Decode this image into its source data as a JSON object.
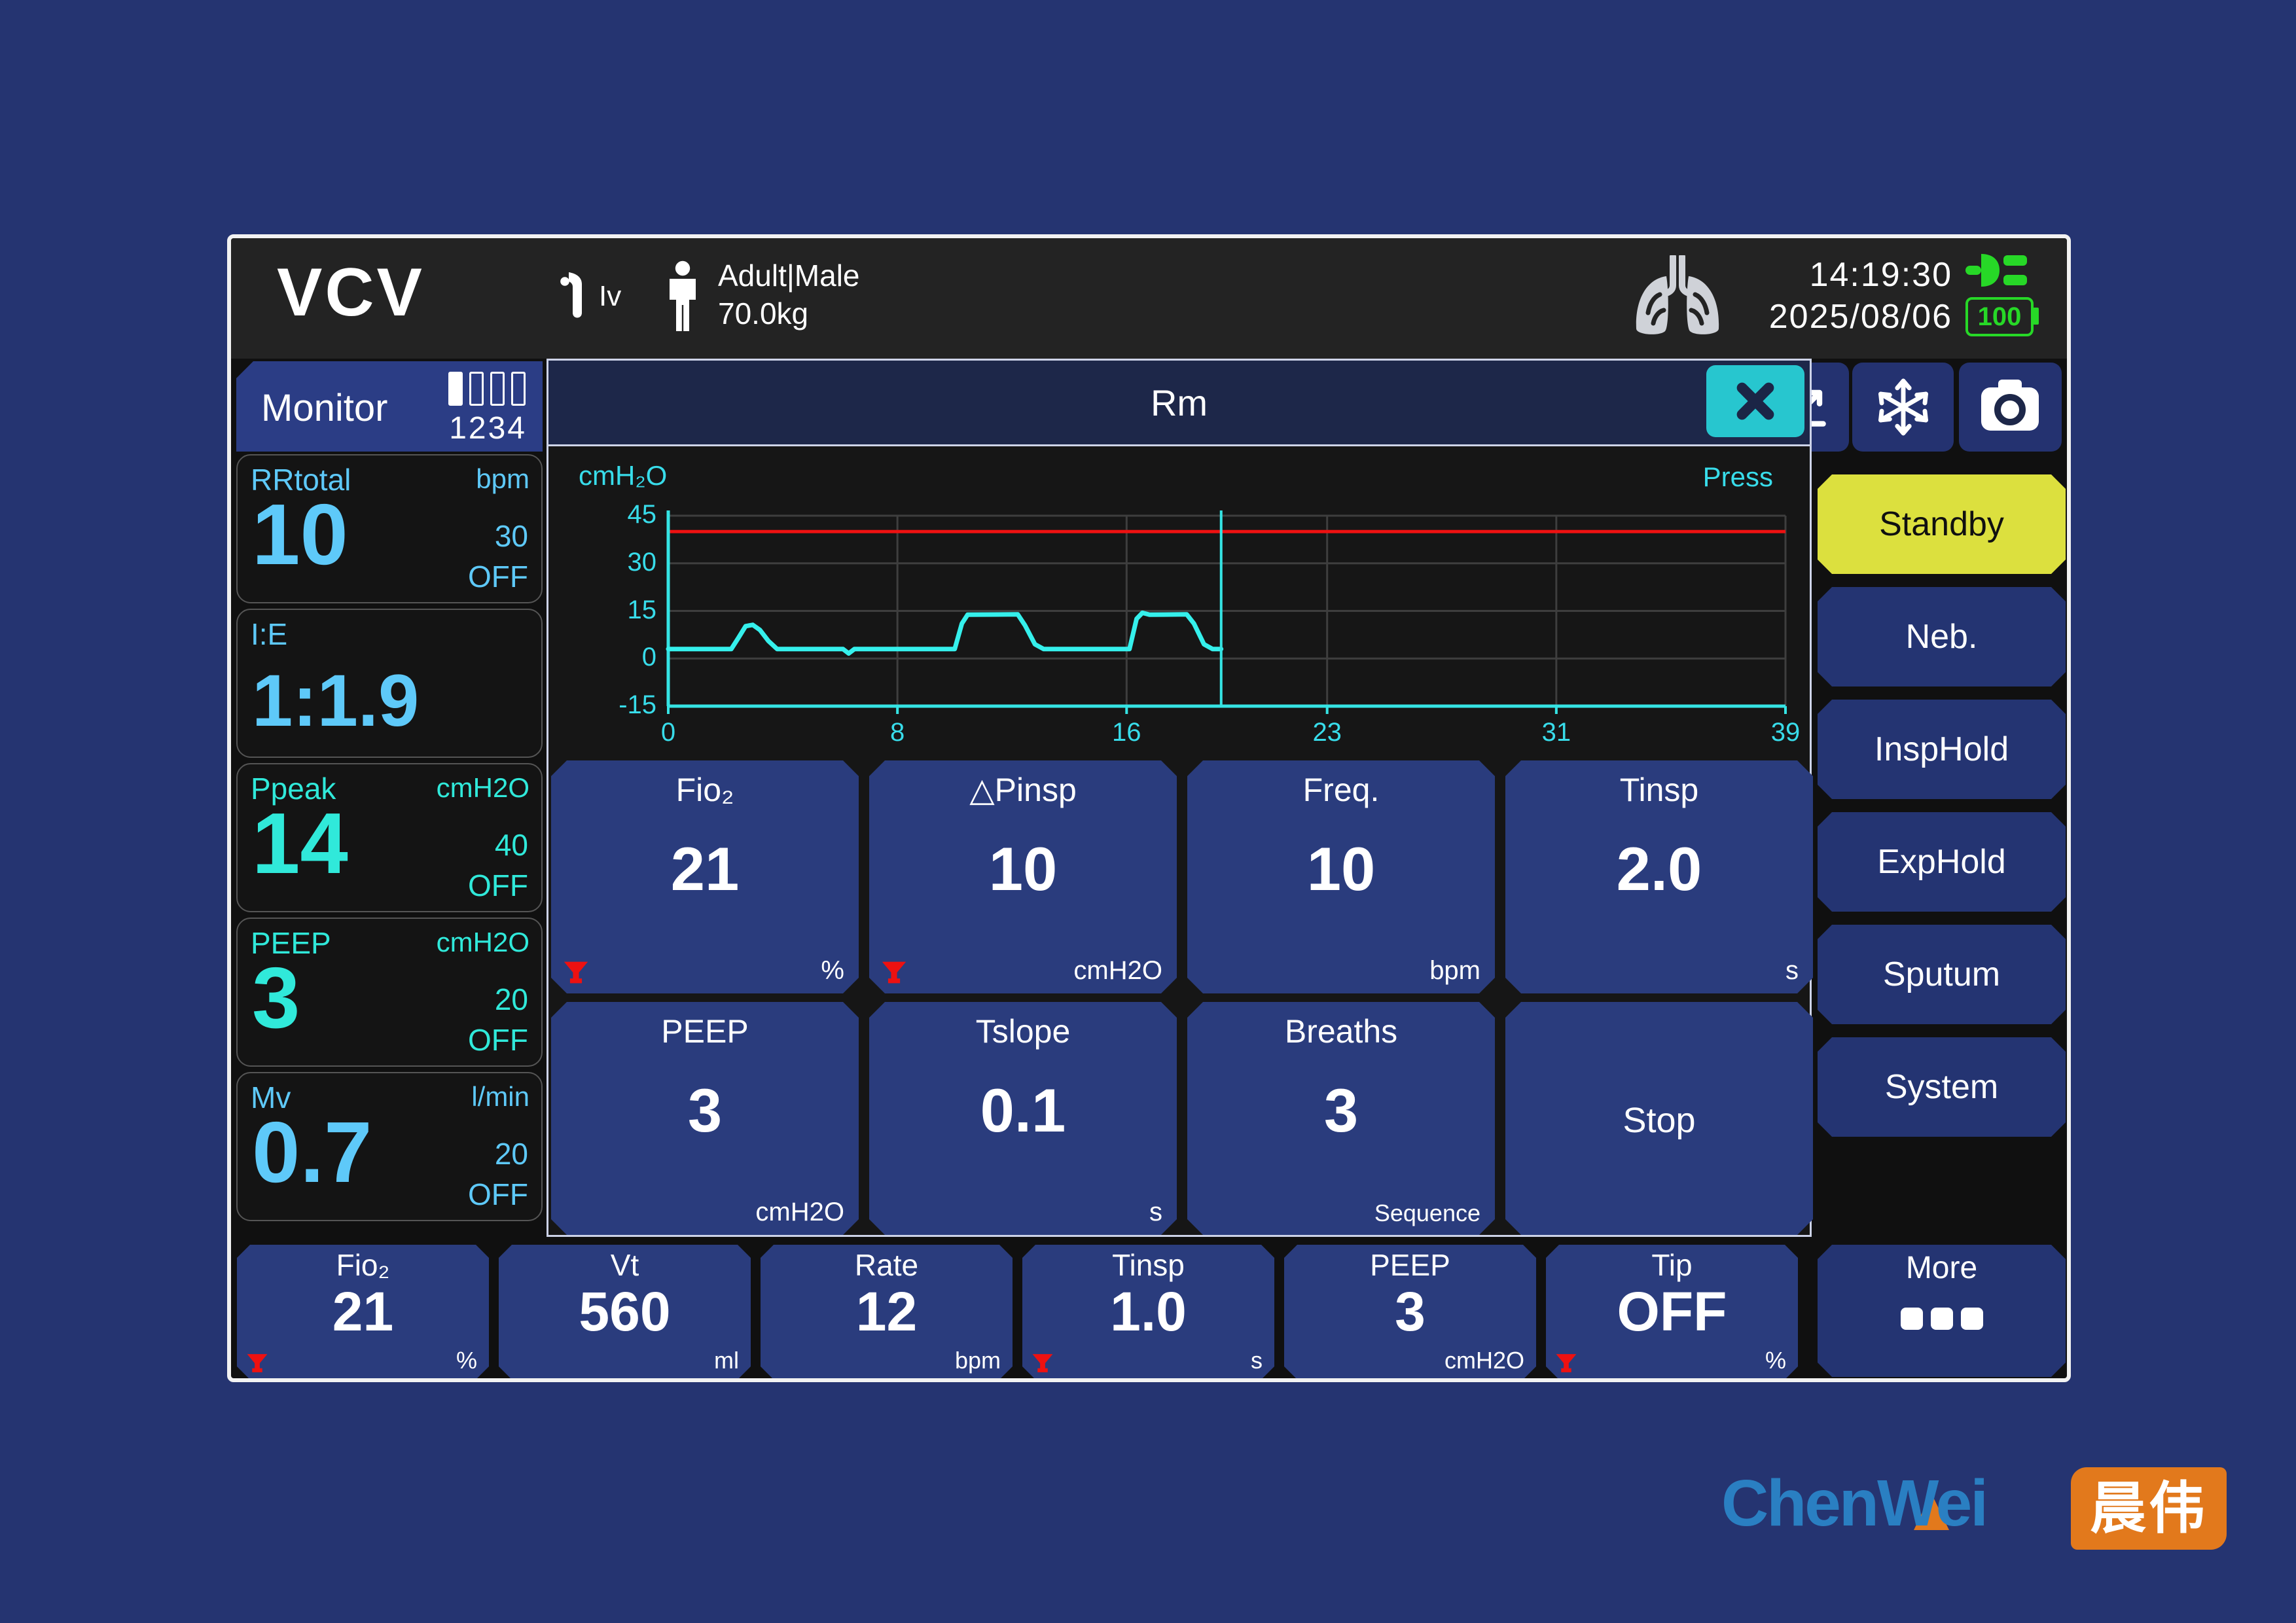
{
  "header": {
    "mode": "VCV",
    "vent_label": "Iv",
    "patient_type": "Adult|Male",
    "patient_weight": "70.0kg",
    "time": "14:19:30",
    "date": "2025/08/06",
    "battery_percent": "100"
  },
  "monitor": {
    "title": "Monitor",
    "page_indicator": "1234",
    "tiles": [
      {
        "label": "RRtotal",
        "unit": "bpm",
        "value": "10",
        "high": "30",
        "low": "OFF"
      },
      {
        "label": "I:E",
        "unit": "",
        "value": "1:1.9",
        "high": "",
        "low": ""
      },
      {
        "label": "Ppeak",
        "unit": "cmH2O",
        "value": "14",
        "high": "40",
        "low": "OFF"
      },
      {
        "label": "PEEP",
        "unit": "cmH2O",
        "value": "3",
        "high": "20",
        "low": "OFF"
      },
      {
        "label": "Mv",
        "unit": "l/min",
        "value": "0.7",
        "high": "20",
        "low": "OFF"
      }
    ]
  },
  "rm_dialog": {
    "title": "Rm",
    "params": [
      {
        "label": "Fio₂",
        "value": "21",
        "unit": "%",
        "alarm": true
      },
      {
        "label": "△Pinsp",
        "value": "10",
        "unit": "cmH2O",
        "alarm": true
      },
      {
        "label": "Freq.",
        "value": "10",
        "unit": "bpm",
        "alarm": false
      },
      {
        "label": "Tinsp",
        "value": "2.0",
        "unit": "s",
        "alarm": false
      },
      {
        "label": "PEEP",
        "value": "3",
        "unit": "cmH2O",
        "alarm": false
      },
      {
        "label": "Tslope",
        "value": "0.1",
        "unit": "s",
        "alarm": false
      },
      {
        "label": "Breaths",
        "value": "3",
        "unit": "Sequence",
        "alarm": false
      },
      {
        "label": "Stop",
        "value": "",
        "unit": "",
        "alarm": false
      }
    ]
  },
  "chart_data": {
    "type": "line",
    "title": "Rm",
    "ylabel": "cmH₂O",
    "series_name": "Press",
    "xlim": [
      0,
      39
    ],
    "ylim": [
      -15,
      45
    ],
    "yticks": [
      45,
      30,
      15,
      0,
      -15
    ],
    "xticks": [
      0,
      8,
      16,
      23,
      31,
      39
    ],
    "grid": true,
    "alarm_limit": 40,
    "cursor_x": 19.3,
    "series": [
      {
        "name": "Press",
        "color": "#35f0ec",
        "points": [
          [
            0,
            3
          ],
          [
            2.2,
            3
          ],
          [
            2.45,
            6.5
          ],
          [
            2.7,
            10.2
          ],
          [
            2.95,
            10.6
          ],
          [
            3.2,
            9
          ],
          [
            3.5,
            5.5
          ],
          [
            3.8,
            3
          ],
          [
            6.1,
            3
          ],
          [
            6.3,
            1.6
          ],
          [
            6.5,
            3
          ],
          [
            10.0,
            3
          ],
          [
            10.25,
            11
          ],
          [
            10.45,
            13.8
          ],
          [
            12.2,
            13.9
          ],
          [
            12.45,
            10.5
          ],
          [
            12.8,
            4.5
          ],
          [
            13.1,
            3
          ],
          [
            16.1,
            3
          ],
          [
            16.35,
            12.5
          ],
          [
            16.55,
            14.4
          ],
          [
            16.8,
            13.8
          ],
          [
            18.1,
            13.9
          ],
          [
            18.35,
            11
          ],
          [
            18.7,
            4.5
          ],
          [
            19.0,
            3
          ],
          [
            19.3,
            3
          ]
        ]
      }
    ]
  },
  "side_buttons": [
    {
      "label": "Standby",
      "active": true
    },
    {
      "label": "Neb.",
      "active": false
    },
    {
      "label": "InspHold",
      "active": false
    },
    {
      "label": "ExpHold",
      "active": false
    },
    {
      "label": "Sputum",
      "active": false
    },
    {
      "label": "System",
      "active": false
    }
  ],
  "more_button": {
    "label": "More"
  },
  "bottom_settings": [
    {
      "label": "Fio₂",
      "value": "21",
      "unit": "%",
      "alarm": true
    },
    {
      "label": "Vt",
      "value": "560",
      "unit": "ml",
      "alarm": false
    },
    {
      "label": "Rate",
      "value": "12",
      "unit": "bpm",
      "alarm": false
    },
    {
      "label": "Tinsp",
      "value": "1.0",
      "unit": "s",
      "alarm": true
    },
    {
      "label": "PEEP",
      "value": "3",
      "unit": "cmH2O",
      "alarm": false
    },
    {
      "label": "Tip",
      "value": "OFF",
      "unit": "%",
      "alarm": true
    }
  ],
  "icons": {
    "close": "x-icon",
    "freeze": "snowflake-icon",
    "snapshot": "camera-icon",
    "trend": "trend-arrow-icon",
    "alarm": "red-funnel-icon",
    "power": "plug-icon",
    "battery": "battery-icon",
    "ventilation": "lungs-icon",
    "patient": "person-icon",
    "airway": "tube-icon",
    "pages": "page-bars-icon"
  },
  "colors": {
    "value_blue": "#5ec9f9",
    "value_teal": "#30e9da",
    "accent_yellow": "#dce03e",
    "alarm_red": "#ee1111",
    "battery_green": "#27d827",
    "wave_cyan": "#35f0ec",
    "tile_blue": "#2a3c7d"
  },
  "logo": {
    "en": "ChenWei",
    "zh": "晨伟"
  }
}
